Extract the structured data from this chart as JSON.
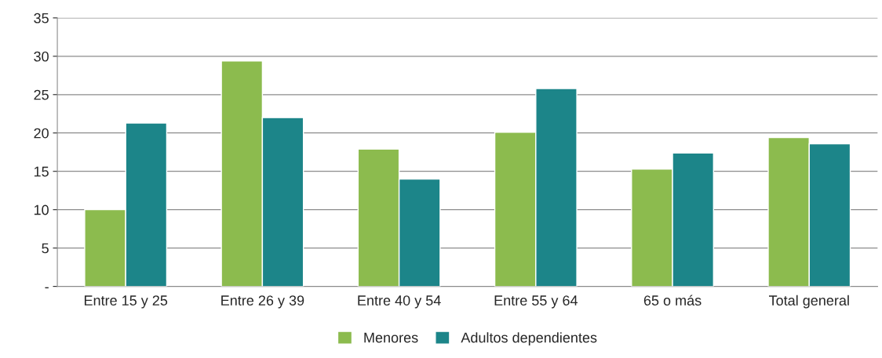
{
  "chart_data": {
    "type": "bar",
    "categories": [
      "Entre 15 y 25",
      "Entre 26 y 39",
      "Entre 40 y 54",
      "Entre 55 y 64",
      "65 o más",
      "Total general"
    ],
    "series": [
      {
        "name": "Menores",
        "color": "#8cbb4e",
        "values": [
          10.0,
          29.4,
          17.9,
          20.1,
          15.3,
          19.4
        ]
      },
      {
        "name": "Adultos dependientes",
        "color": "#1c8589",
        "values": [
          21.3,
          22.0,
          14.0,
          25.8,
          17.4,
          18.6
        ]
      }
    ],
    "ylim": [
      0,
      35
    ],
    "yticks": [
      {
        "value": 0,
        "label": "-"
      },
      5,
      10,
      15,
      20,
      25,
      30,
      35
    ],
    "grid": "y",
    "legend": "bottom"
  }
}
